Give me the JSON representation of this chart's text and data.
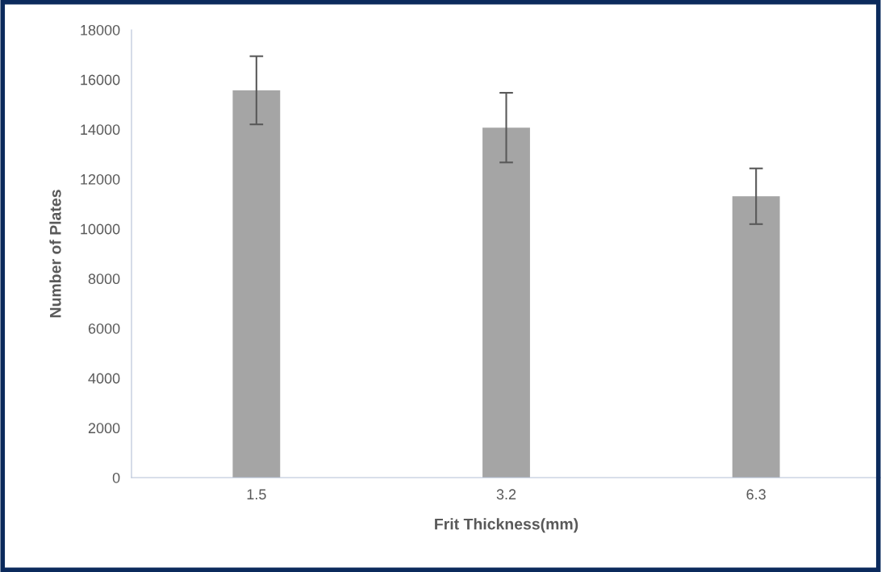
{
  "chart_data": {
    "type": "bar",
    "xlabel": "Frit Thickness(mm)",
    "ylabel": "Number of Plates",
    "categories": [
      "1.5",
      "3.2",
      "6.3"
    ],
    "values": [
      15570,
      14070,
      11310
    ],
    "errors": [
      1370,
      1400,
      1120
    ],
    "color": "#a5a5a5",
    "ylim": [
      0,
      18000
    ],
    "yticks": [
      0,
      2000,
      4000,
      6000,
      8000,
      10000,
      12000,
      14000,
      16000,
      18000
    ],
    "grid": false,
    "legend": false
  }
}
